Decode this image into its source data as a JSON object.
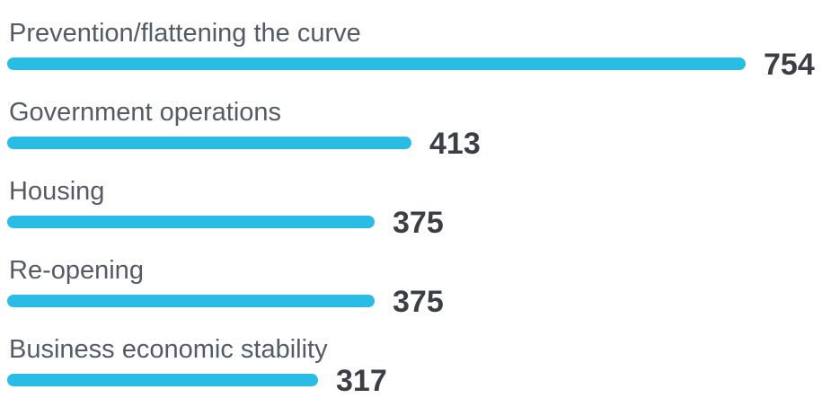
{
  "colors": {
    "bar": "#29bde6",
    "label": "#555b62",
    "value": "#3b3f45"
  },
  "chart_data": {
    "type": "bar",
    "orientation": "horizontal",
    "categories": [
      "Prevention/flattening the curve",
      "Government operations",
      "Housing",
      "Re-opening",
      "Business economic stability"
    ],
    "values": [
      754,
      413,
      375,
      375,
      317
    ],
    "title": "",
    "xlabel": "",
    "ylabel": "",
    "xlim": [
      0,
      754
    ],
    "grid": false,
    "legend": "none",
    "data_labels": true
  }
}
